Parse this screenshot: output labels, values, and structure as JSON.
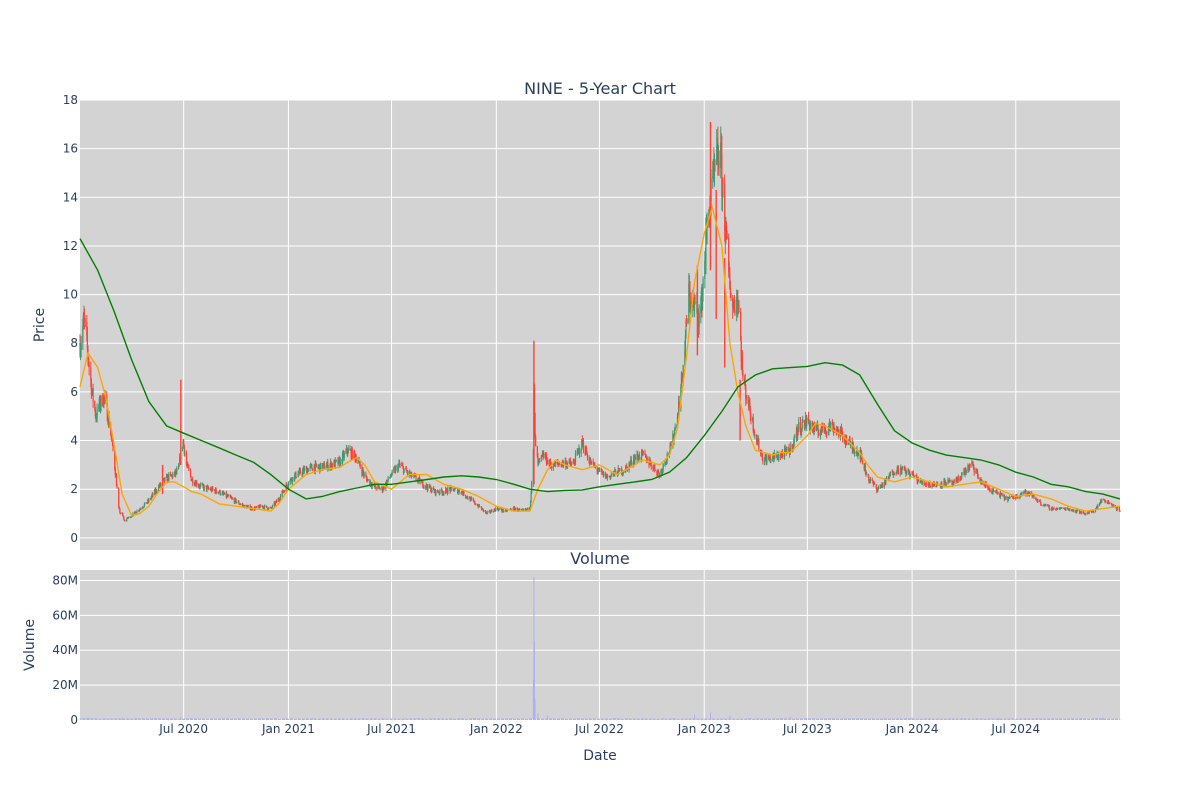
{
  "chart_data": [
    {
      "type": "candlestick",
      "title": "NINE - 5-Year Chart",
      "xlabel": "",
      "ylabel": "Price",
      "ylim": [
        -0.5,
        18
      ],
      "yticks": [
        0,
        2,
        4,
        6,
        8,
        10,
        12,
        14,
        16,
        18
      ],
      "grid": true,
      "background": "#d3d3d3",
      "colors": {
        "increasing": "#3d9970",
        "decreasing": "#ff4136",
        "ma_short": "#ffa500",
        "ma_long": "#008000"
      },
      "series_close": {
        "dates": [
          "2020-01-02",
          "2020-01-08",
          "2020-01-15",
          "2020-01-22",
          "2020-01-29",
          "2020-02-05",
          "2020-02-12",
          "2020-02-19",
          "2020-02-26",
          "2020-03-04",
          "2020-03-09",
          "2020-03-12",
          "2020-03-16",
          "2020-03-19",
          "2020-03-24",
          "2020-03-31",
          "2020-04-15",
          "2020-04-30",
          "2020-05-15",
          "2020-05-25",
          "2020-06-05",
          "2020-06-15",
          "2020-06-22",
          "2020-06-26",
          "2020-06-30",
          "2020-07-06",
          "2020-07-15",
          "2020-08-01",
          "2020-08-15",
          "2020-09-01",
          "2020-09-15",
          "2020-10-01",
          "2020-10-15",
          "2020-11-01",
          "2020-11-15",
          "2020-12-01",
          "2020-12-15",
          "2021-01-01",
          "2021-01-15",
          "2021-02-01",
          "2021-02-12",
          "2021-02-26",
          "2021-03-15",
          "2021-04-01",
          "2021-04-15",
          "2021-05-01",
          "2021-05-15",
          "2021-06-01",
          "2021-06-15",
          "2021-07-01",
          "2021-07-15",
          "2021-08-01",
          "2021-08-15",
          "2021-09-01",
          "2021-09-15",
          "2021-10-01",
          "2021-10-15",
          "2021-11-01",
          "2021-11-15",
          "2021-12-01",
          "2021-12-15",
          "2022-01-01",
          "2022-01-15",
          "2022-02-01",
          "2022-02-15",
          "2022-03-01",
          "2022-03-07",
          "2022-03-08",
          "2022-03-10",
          "2022-03-15",
          "2022-03-25",
          "2022-04-05",
          "2022-04-15",
          "2022-05-01",
          "2022-05-15",
          "2022-06-01",
          "2022-06-15",
          "2022-07-01",
          "2022-07-15",
          "2022-08-01",
          "2022-08-15",
          "2022-09-01",
          "2022-09-15",
          "2022-10-01",
          "2022-10-15",
          "2022-10-25",
          "2022-11-05",
          "2022-11-15",
          "2022-11-25",
          "2022-12-05",
          "2022-12-15",
          "2022-12-25",
          "2023-01-05",
          "2023-01-12",
          "2023-01-20",
          "2023-01-28",
          "2023-02-05",
          "2023-02-12",
          "2023-02-20",
          "2023-03-01",
          "2023-03-10",
          "2023-03-20",
          "2023-04-01",
          "2023-04-15",
          "2023-05-01",
          "2023-05-15",
          "2023-06-01",
          "2023-06-15",
          "2023-07-01",
          "2023-07-15",
          "2023-08-01",
          "2023-08-15",
          "2023-09-01",
          "2023-09-15",
          "2023-10-01",
          "2023-10-15",
          "2023-11-01",
          "2023-11-15",
          "2023-12-01",
          "2023-12-15",
          "2024-01-01",
          "2024-01-15",
          "2024-02-01",
          "2024-02-15",
          "2024-03-01",
          "2024-03-15",
          "2024-04-01",
          "2024-04-15",
          "2024-05-01",
          "2024-05-15",
          "2024-06-01",
          "2024-06-15",
          "2024-07-01",
          "2024-07-15",
          "2024-08-01",
          "2024-08-15",
          "2024-09-01",
          "2024-09-15",
          "2024-10-01",
          "2024-10-15",
          "2024-11-01",
          "2024-11-15",
          "2024-12-01",
          "2024-12-15",
          "2024-12-31"
        ],
        "values": [
          8.0,
          9.0,
          7.5,
          6.0,
          5.0,
          5.5,
          5.8,
          5.0,
          4.0,
          2.5,
          1.2,
          1.0,
          0.9,
          0.7,
          0.8,
          0.9,
          1.2,
          1.5,
          2.0,
          2.3,
          2.5,
          2.6,
          2.8,
          3.5,
          4.0,
          3.0,
          2.4,
          2.1,
          2.0,
          1.9,
          1.7,
          1.5,
          1.3,
          1.2,
          1.3,
          1.2,
          1.6,
          2.3,
          2.6,
          2.8,
          2.9,
          2.9,
          3.0,
          3.1,
          3.6,
          3.3,
          2.5,
          2.1,
          2.0,
          2.6,
          3.0,
          2.6,
          2.4,
          2.1,
          1.9,
          1.9,
          2.0,
          1.9,
          1.6,
          1.3,
          1.0,
          1.2,
          1.1,
          1.2,
          1.1,
          1.2,
          3.5,
          6.0,
          4.0,
          3.0,
          3.4,
          3.0,
          3.0,
          3.1,
          3.0,
          3.9,
          3.1,
          2.7,
          2.5,
          2.7,
          2.8,
          3.3,
          3.4,
          3.0,
          2.6,
          3.2,
          3.8,
          5.0,
          7.0,
          10.0,
          9.5,
          9.0,
          12.5,
          14.0,
          15.0,
          16.0,
          13.5,
          11.0,
          9.5,
          10.0,
          6.5,
          5.5,
          4.2,
          3.2,
          3.3,
          3.4,
          3.6,
          4.5,
          4.8,
          4.4,
          4.5,
          4.6,
          4.2,
          3.8,
          3.5,
          2.5,
          2.0,
          2.3,
          2.8,
          2.8,
          2.6,
          2.3,
          2.2,
          2.2,
          2.3,
          2.2,
          2.7,
          3.0,
          2.3,
          2.0,
          1.8,
          1.6,
          1.7,
          1.9,
          1.7,
          1.4,
          1.2,
          1.2,
          1.2,
          1.1,
          1.0,
          1.1,
          1.6,
          1.4,
          1.1
        ]
      },
      "spikes": [
        {
          "date": "2020-06-26",
          "high": 6.5,
          "low": 3.0
        },
        {
          "date": "2020-05-25",
          "high": 3.0,
          "low": 1.8
        },
        {
          "date": "2022-03-08",
          "high": 8.1,
          "low": 2.2
        },
        {
          "date": "2022-12-20",
          "high": 11.2,
          "low": 7.5
        },
        {
          "date": "2023-01-12",
          "high": 17.1,
          "low": 11.0
        },
        {
          "date": "2023-01-22",
          "high": 14.3,
          "low": 9.0
        },
        {
          "date": "2023-02-06",
          "high": 11.5,
          "low": 7.0
        },
        {
          "date": "2023-03-05",
          "high": 6.5,
          "low": 4.0
        }
      ],
      "ma_short": {
        "dates": [
          "2020-01-01",
          "2020-01-15",
          "2020-02-01",
          "2020-02-15",
          "2020-03-01",
          "2020-03-15",
          "2020-04-01",
          "2020-04-15",
          "2020-05-01",
          "2020-05-15",
          "2020-06-01",
          "2020-06-15",
          "2020-07-01",
          "2020-07-15",
          "2020-08-01",
          "2020-09-01",
          "2020-10-01",
          "2020-11-01",
          "2020-12-01",
          "2020-12-15",
          "2021-01-01",
          "2021-02-01",
          "2021-03-01",
          "2021-04-01",
          "2021-04-15",
          "2021-05-01",
          "2021-05-15",
          "2021-06-01",
          "2021-07-01",
          "2021-08-01",
          "2021-09-01",
          "2021-10-01",
          "2021-11-01",
          "2021-12-01",
          "2022-01-01",
          "2022-02-01",
          "2022-03-01",
          "2022-03-15",
          "2022-04-01",
          "2022-04-15",
          "2022-05-01",
          "2022-06-01",
          "2022-07-01",
          "2022-08-01",
          "2022-09-01",
          "2022-09-15",
          "2022-10-01",
          "2022-10-15",
          "2022-11-01",
          "2022-11-15",
          "2022-12-01",
          "2022-12-15",
          "2023-01-01",
          "2023-01-15",
          "2023-02-01",
          "2023-02-15",
          "2023-03-01",
          "2023-03-15",
          "2023-04-01",
          "2023-05-01",
          "2023-05-15",
          "2023-06-01",
          "2023-07-01",
          "2023-07-15",
          "2023-08-01",
          "2023-09-01",
          "2023-10-01",
          "2023-10-15",
          "2023-11-01",
          "2023-12-01",
          "2024-01-01",
          "2024-02-01",
          "2024-03-01",
          "2024-04-01",
          "2024-05-01",
          "2024-06-01",
          "2024-07-01",
          "2024-08-01",
          "2024-09-01",
          "2024-10-01",
          "2024-11-01",
          "2024-12-01",
          "2024-12-31"
        ],
        "values": [
          6.2,
          7.6,
          7.0,
          5.8,
          3.8,
          1.8,
          0.9,
          1.0,
          1.3,
          1.8,
          2.3,
          2.3,
          2.1,
          1.9,
          1.8,
          1.4,
          1.3,
          1.2,
          1.1,
          1.4,
          2.0,
          2.6,
          2.8,
          2.9,
          3.1,
          3.3,
          3.0,
          2.3,
          2.0,
          2.6,
          2.6,
          2.2,
          2.0,
          1.7,
          1.3,
          1.1,
          1.1,
          2.0,
          2.8,
          3.2,
          3.0,
          2.8,
          3.0,
          2.6,
          3.0,
          3.2,
          3.1,
          3.0,
          3.4,
          4.5,
          7.5,
          10.5,
          12.5,
          13.6,
          12.0,
          8.0,
          6.0,
          4.6,
          3.6,
          3.4,
          3.5,
          3.5,
          4.2,
          4.7,
          4.6,
          4.2,
          3.5,
          3.0,
          2.5,
          2.3,
          2.5,
          2.3,
          2.1,
          2.2,
          2.3,
          2.0,
          1.7,
          1.8,
          1.6,
          1.3,
          1.1,
          1.2,
          1.3
        ]
      },
      "ma_long": {
        "dates": [
          "2020-01-01",
          "2020-02-01",
          "2020-03-01",
          "2020-04-01",
          "2020-05-01",
          "2020-06-01",
          "2020-07-01",
          "2020-08-01",
          "2020-09-01",
          "2020-10-01",
          "2020-11-01",
          "2020-12-01",
          "2021-01-01",
          "2021-02-01",
          "2021-03-01",
          "2021-04-01",
          "2021-05-01",
          "2021-06-01",
          "2021-07-01",
          "2021-08-01",
          "2021-09-01",
          "2021-10-01",
          "2021-11-01",
          "2021-12-01",
          "2022-01-01",
          "2022-02-01",
          "2022-03-01",
          "2022-04-01",
          "2022-05-01",
          "2022-06-01",
          "2022-07-01",
          "2022-08-01",
          "2022-09-01",
          "2022-10-01",
          "2022-11-01",
          "2022-12-01",
          "2023-01-01",
          "2023-02-01",
          "2023-03-01",
          "2023-04-01",
          "2023-05-01",
          "2023-06-01",
          "2023-07-01",
          "2023-08-01",
          "2023-09-01",
          "2023-10-01",
          "2023-11-01",
          "2023-12-01",
          "2024-01-01",
          "2024-02-01",
          "2024-03-01",
          "2024-04-01",
          "2024-05-01",
          "2024-06-01",
          "2024-07-01",
          "2024-08-01",
          "2024-09-01",
          "2024-10-01",
          "2024-11-01",
          "2024-12-01",
          "2024-12-31"
        ],
        "values": [
          12.3,
          11.0,
          9.3,
          7.3,
          5.6,
          4.6,
          4.3,
          4.0,
          3.7,
          3.4,
          3.1,
          2.6,
          2.0,
          1.6,
          1.7,
          1.9,
          2.05,
          2.2,
          2.2,
          2.3,
          2.4,
          2.5,
          2.55,
          2.5,
          2.4,
          2.2,
          2.0,
          1.9,
          1.95,
          1.97,
          2.1,
          2.2,
          2.3,
          2.4,
          2.7,
          3.3,
          4.2,
          5.2,
          6.2,
          6.7,
          6.95,
          7.0,
          7.05,
          7.2,
          7.1,
          6.7,
          5.5,
          4.4,
          3.9,
          3.6,
          3.4,
          3.3,
          3.2,
          3.0,
          2.7,
          2.5,
          2.2,
          2.1,
          1.9,
          1.8,
          1.6
        ]
      }
    },
    {
      "type": "bar",
      "title": "Volume",
      "xlabel": "Date",
      "ylabel": "Volume",
      "ylim": [
        0,
        86000000
      ],
      "yticks": [
        0,
        20000000,
        40000000,
        60000000,
        80000000
      ],
      "ytick_labels": [
        "0",
        "20M",
        "40M",
        "60M",
        "80M"
      ],
      "xtick_dates": [
        "2020-07-01",
        "2021-01-01",
        "2021-07-01",
        "2022-01-01",
        "2022-07-01",
        "2023-01-01",
        "2023-07-01",
        "2024-01-01",
        "2024-07-01"
      ],
      "xtick_labels": [
        "Jul 2020",
        "Jan 2021",
        "Jul 2021",
        "Jan 2022",
        "Jul 2022",
        "Jan 2023",
        "Jul 2023",
        "Jan 2024",
        "Jul 2024"
      ],
      "x_range": [
        "2020-01-01",
        "2024-12-31"
      ],
      "color": "#b0b0f0",
      "background": "#d3d3d3",
      "series": {
        "dates": [
          "2020-01-15",
          "2020-03-15",
          "2020-06-26",
          "2021-02-15",
          "2021-06-15",
          "2022-03-07",
          "2022-03-08",
          "2022-03-09",
          "2022-03-10",
          "2022-03-15",
          "2022-04-01",
          "2022-12-15",
          "2023-01-12",
          "2023-02-15",
          "2023-06-01",
          "2024-01-01",
          "2024-06-01",
          "2024-12-01"
        ],
        "values": [
          1200000,
          1500000,
          1800000,
          1000000,
          900000,
          20000000,
          82000000,
          45000000,
          12000000,
          4000000,
          2500000,
          3000000,
          3500000,
          2500000,
          1500000,
          1200000,
          1000000,
          1500000
        ]
      }
    }
  ]
}
